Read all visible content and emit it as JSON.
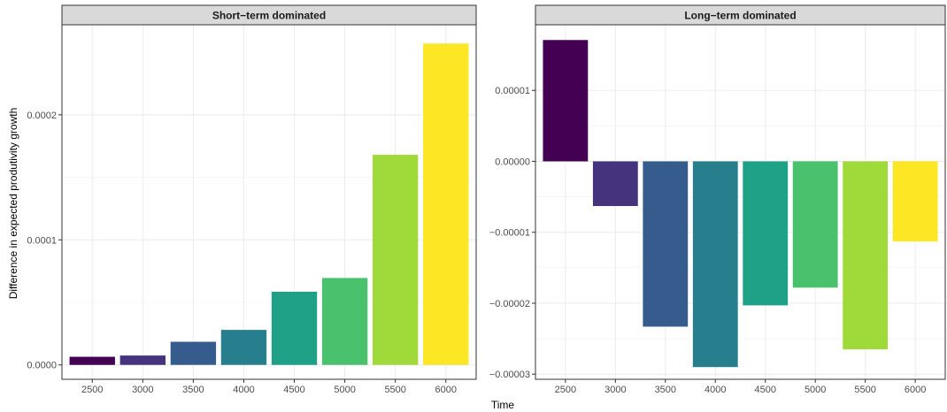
{
  "figure": {
    "xlabel": "Time",
    "ylabel": "Difference in expected produtivity growth"
  },
  "chart_data": [
    {
      "type": "bar",
      "title": "Short−term dominated",
      "categories": [
        "2500",
        "3000",
        "3500",
        "4000",
        "4500",
        "5000",
        "5500",
        "6000"
      ],
      "values": [
        6.5e-06,
        7.5e-06,
        1.85e-05,
        2.8e-05,
        5.85e-05,
        6.95e-05,
        0.000168,
        0.000257
      ],
      "ylim": [
        -1.15e-05,
        0.000272
      ],
      "yticks": [
        0,
        0.0001,
        0.0002
      ],
      "ytick_labels": [
        "0.0000",
        "0.0001",
        "0.0002"
      ],
      "grid": true,
      "colors": [
        "#440154",
        "#46337E",
        "#365C8D",
        "#277F8E",
        "#1FA187",
        "#4AC16D",
        "#9FDA3A",
        "#FDE725"
      ]
    },
    {
      "type": "bar",
      "title": "Long−term dominated",
      "categories": [
        "2500",
        "3000",
        "3500",
        "4000",
        "4500",
        "5000",
        "5500",
        "6000"
      ],
      "values": [
        1.71e-05,
        -6.3e-06,
        -2.33e-05,
        -2.9e-05,
        -2.03e-05,
        -1.78e-05,
        -2.65e-05,
        -1.13e-05
      ],
      "ylim": [
        -3.072e-05,
        1.925e-05
      ],
      "yticks": [
        -3e-05,
        -2e-05,
        -1e-05,
        0,
        1e-05
      ],
      "ytick_labels": [
        "−0.00003",
        "−0.00002",
        "−0.00001",
        "0.00000",
        "0.00001"
      ],
      "grid": true,
      "colors": [
        "#440154",
        "#46337E",
        "#365C8D",
        "#277F8E",
        "#1FA187",
        "#4AC16D",
        "#9FDA3A",
        "#FDE725"
      ]
    }
  ]
}
